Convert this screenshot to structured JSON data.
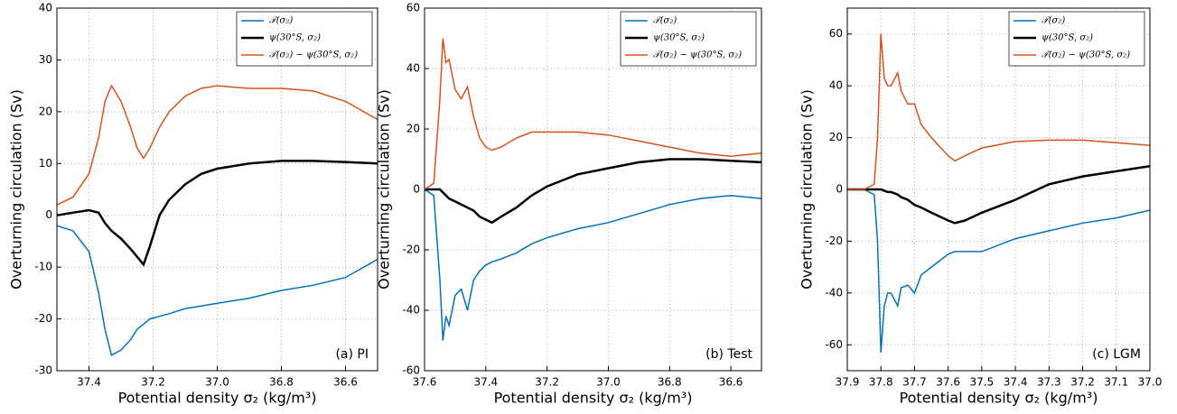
{
  "chart_data": [
    {
      "type": "line",
      "xlabel": "Potential density σ₂ (kg/m³)",
      "ylabel": "Overturning circulation (Sv)",
      "annotation": "(a) PI",
      "legend": "upper right",
      "grid": true,
      "xlim": [
        37.5,
        36.5
      ],
      "xticks": [
        37.4,
        37.2,
        {
          "value": 37.0,
          "label": "37.0"
        },
        36.8,
        36.6
      ],
      "ylim": [
        -30,
        40
      ],
      "yticks": [
        -30,
        -20,
        -10,
        0,
        10,
        20,
        30,
        40
      ],
      "x": [
        37.5,
        37.45,
        37.4,
        37.37,
        37.35,
        37.33,
        37.3,
        37.27,
        37.25,
        37.23,
        37.21,
        37.18,
        37.15,
        37.1,
        37.05,
        37.0,
        36.9,
        36.8,
        36.7,
        36.6,
        36.5
      ],
      "series": [
        {
          "name": "𝒯(σ₂)",
          "color": "#0072bd",
          "values": [
            -2,
            -3,
            -7,
            -15,
            -22,
            -27,
            -26,
            -24,
            -22,
            -21,
            -20,
            -19.5,
            -19,
            -18,
            -17.5,
            -17,
            -16,
            -14.5,
            -13.5,
            -12,
            -8.5
          ]
        },
        {
          "name": "ψ(30°S, σ₂)",
          "color": "#000000",
          "values": [
            0,
            0.5,
            1,
            0.5,
            -1.5,
            -3,
            -4.5,
            -6.5,
            -8,
            -9.5,
            -6,
            0,
            3,
            6,
            8,
            9,
            10,
            10.5,
            10.5,
            10.3,
            10
          ]
        },
        {
          "name": "𝒯(σ₂) − ψ(30°S, σ₂)",
          "color": "#d95319",
          "values": [
            2,
            3.5,
            8,
            15,
            22,
            25,
            22,
            17,
            13,
            11,
            13,
            17,
            20,
            23,
            24.5,
            25,
            24.5,
            24.5,
            24,
            22,
            18.5
          ]
        }
      ]
    },
    {
      "type": "line",
      "xlabel": "Potential density σ₂ (kg/m³)",
      "ylabel": "Overturning circulation (Sv)",
      "annotation": "(b) Test",
      "legend": "upper right",
      "grid": true,
      "xlim": [
        37.6,
        36.5
      ],
      "xticks": [
        37.6,
        37.4,
        37.2,
        {
          "value": 37.0,
          "label": "37.0"
        },
        36.8,
        36.6
      ],
      "ylim": [
        -60,
        60
      ],
      "yticks": [
        -60,
        -40,
        -20,
        0,
        20,
        40,
        60
      ],
      "x": [
        37.6,
        37.57,
        37.55,
        37.54,
        37.53,
        37.52,
        37.5,
        37.48,
        37.46,
        37.44,
        37.42,
        37.4,
        37.38,
        37.35,
        37.3,
        37.25,
        37.2,
        37.1,
        37.0,
        36.9,
        36.8,
        36.7,
        36.6,
        36.5
      ],
      "series": [
        {
          "name": "𝒯(σ₂)",
          "color": "#0072bd",
          "values": [
            0,
            -2,
            -30,
            -50,
            -42,
            -45,
            -35,
            -33,
            -40,
            -30,
            -27,
            -25,
            -24,
            -23,
            -21,
            -18,
            -16,
            -13,
            -11,
            -8,
            -5,
            -3,
            -2,
            -3
          ]
        },
        {
          "name": "ψ(30°S, σ₂)",
          "color": "#000000",
          "values": [
            0,
            0,
            0,
            -1,
            -2,
            -3,
            -4,
            -5,
            -6,
            -7,
            -9,
            -10,
            -11,
            -9,
            -6,
            -2,
            1,
            5,
            7,
            9,
            10,
            10,
            9.5,
            9
          ]
        },
        {
          "name": "𝒯(σ₂) − ψ(30°S, σ₂)",
          "color": "#d95319",
          "values": [
            0,
            2,
            30,
            50,
            42,
            43,
            33,
            30,
            34,
            24,
            17,
            14,
            13,
            14,
            17,
            19,
            19,
            19,
            18,
            16,
            14,
            12,
            11,
            12
          ]
        }
      ]
    },
    {
      "type": "line",
      "xlabel": "Potential density σ₂ (kg/m³)",
      "ylabel": "Overturning circulation (Sv)",
      "annotation": "(c) LGM",
      "legend": "upper right",
      "grid": true,
      "xlim": [
        37.9,
        37.0
      ],
      "xticks": [
        37.9,
        37.8,
        37.7,
        37.6,
        37.5,
        37.4,
        37.3,
        37.2,
        37.1,
        {
          "value": 37.0,
          "label": "37.0"
        }
      ],
      "ylim": [
        -70,
        70
      ],
      "yticks": [
        -60,
        -40,
        -20,
        0,
        20,
        40,
        60
      ],
      "x": [
        37.9,
        37.85,
        37.82,
        37.81,
        37.8,
        37.79,
        37.78,
        37.77,
        37.75,
        37.74,
        37.72,
        37.7,
        37.68,
        37.65,
        37.6,
        37.58,
        37.55,
        37.5,
        37.4,
        37.3,
        37.2,
        37.1,
        37.0
      ],
      "series": [
        {
          "name": "𝒯(σ₂)",
          "color": "#0072bd",
          "values": [
            0,
            0,
            -2,
            -20,
            -63,
            -45,
            -40,
            -40,
            -45,
            -38,
            -37,
            -40,
            -33,
            -30,
            -25,
            -24,
            -24,
            -24,
            -19,
            -16,
            -13,
            -11,
            -8
          ]
        },
        {
          "name": "ψ(30°S, σ₂)",
          "color": "#000000",
          "values": [
            0,
            0,
            0,
            0,
            0,
            -0.5,
            -1,
            -1,
            -2,
            -3,
            -4,
            -6,
            -7,
            -9,
            -12,
            -13,
            -12,
            -9,
            -4,
            2,
            5,
            7,
            9
          ]
        },
        {
          "name": "𝒯(σ₂) − ψ(30°S, σ₂)",
          "color": "#d95319",
          "values": [
            0,
            0,
            2,
            20,
            60,
            43,
            40,
            40,
            45,
            38,
            33,
            33,
            25,
            20,
            13,
            11,
            13,
            16,
            18.5,
            19,
            19,
            18,
            17
          ]
        }
      ]
    }
  ]
}
